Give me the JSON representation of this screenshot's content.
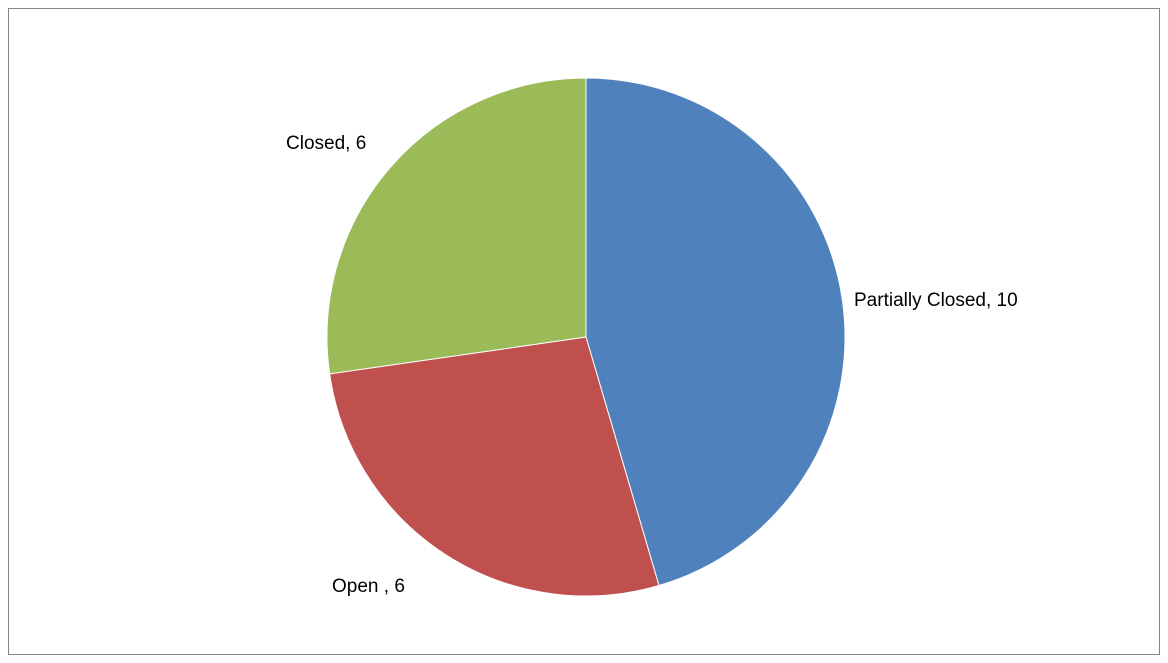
{
  "chart_data": {
    "type": "pie",
    "title": "",
    "slices": [
      {
        "category": "Partially Closed",
        "value": 10,
        "label": "Partially Closed, 10",
        "color": "#4F81BD"
      },
      {
        "category": "Open ",
        "value": 6,
        "label": "Open , 6",
        "color": "#C0504D"
      },
      {
        "category": "Closed",
        "value": 6,
        "label": "Closed, 6",
        "color": "#9BBB59"
      }
    ],
    "start_angle": "12 o'clock",
    "direction": "clockwise",
    "legend": "none",
    "data_labels": "outside end"
  }
}
